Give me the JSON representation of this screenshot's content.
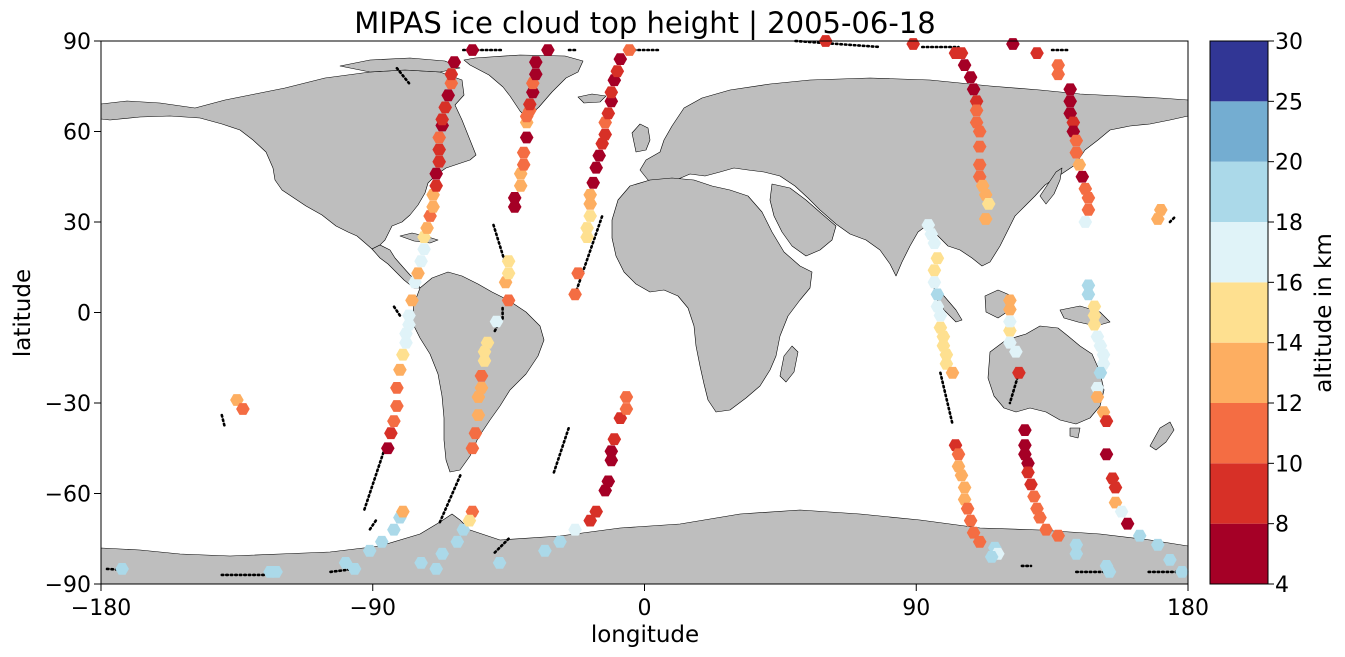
{
  "chart_data": {
    "type": "scatter",
    "title": "MIPAS ice cloud top height | 2005-06-18",
    "xlabel": "longitude",
    "ylabel": "latitude",
    "xlim": [
      -180,
      180
    ],
    "ylim": [
      -90,
      90
    ],
    "xticks": [
      -180,
      -90,
      0,
      90,
      180
    ],
    "xtick_labels": [
      "−180",
      "−90",
      "0",
      "90",
      "180"
    ],
    "yticks": [
      -90,
      -60,
      -30,
      0,
      30,
      60,
      90
    ],
    "ytick_labels": [
      "−90",
      "−60",
      "−30",
      "0",
      "30",
      "60",
      "90"
    ],
    "grid": false,
    "land_color": "#bebebe",
    "ocean_color": "#ffffff",
    "colorbar": {
      "label": "altitude in km",
      "bounds": [
        4,
        8,
        10,
        12,
        14,
        16,
        18,
        20,
        25,
        30
      ],
      "bound_labels": [
        "4",
        "8",
        "10",
        "12",
        "14",
        "16",
        "18",
        "20",
        "25",
        "30"
      ],
      "colors": [
        "#a50026",
        "#d73027",
        "#f46d43",
        "#fdae61",
        "#fee090",
        "#e0f3f8",
        "#abd9e9",
        "#74add1",
        "#313695"
      ]
    },
    "track_segments": [
      [
        [
          -178,
          -85
        ],
        [
          -175,
          -85.2
        ]
      ],
      [
        [
          -140,
          -34
        ],
        [
          -139,
          -38
        ]
      ],
      [
        [
          -140,
          -87
        ],
        [
          -124,
          -87
        ]
      ],
      [
        [
          -104,
          -86
        ],
        [
          -96,
          -85
        ]
      ],
      [
        [
          -89,
          -69
        ],
        [
          -91,
          -72
        ]
      ],
      [
        [
          -81,
          -1
        ],
        [
          -83,
          2
        ]
      ],
      [
        [
          -86,
          -45
        ],
        [
          -93,
          -66
        ]
      ],
      [
        [
          -61,
          -54
        ],
        [
          -68,
          -70
        ]
      ],
      [
        [
          -48,
          -3
        ],
        [
          -50,
          -7
        ]
      ],
      [
        [
          -50,
          29
        ],
        [
          -46,
          16
        ]
      ],
      [
        [
          -47,
          -2
        ],
        [
          -47,
          2
        ]
      ],
      [
        [
          -45,
          -75
        ],
        [
          -50,
          -80
        ]
      ],
      [
        [
          -30,
          -53
        ],
        [
          -25,
          -38
        ]
      ],
      [
        [
          -23,
          6
        ],
        [
          -14,
          32
        ]
      ],
      [
        [
          -82,
          81
        ],
        [
          -78,
          76
        ]
      ],
      [
        [
          -60,
          87
        ],
        [
          -47,
          87
        ]
      ],
      [
        [
          -25,
          87
        ],
        [
          -23,
          87
        ]
      ],
      [
        [
          -5,
          87
        ],
        [
          5,
          87
        ]
      ],
      [
        [
          50,
          90
        ],
        [
          78,
          88
        ]
      ],
      [
        [
          92,
          88
        ],
        [
          104,
          88
        ]
      ],
      [
        [
          135,
          87
        ],
        [
          140,
          87
        ]
      ],
      [
        [
          98,
          -20
        ],
        [
          102,
          -37
        ]
      ],
      [
        [
          124,
          -20
        ],
        [
          121,
          -30
        ]
      ],
      [
        [
          125,
          -84
        ],
        [
          128,
          -84
        ]
      ],
      [
        [
          143,
          -86
        ],
        [
          152,
          -86
        ]
      ],
      [
        [
          167,
          -86
        ],
        [
          176,
          -86
        ]
      ],
      [
        [
          174,
          30
        ],
        [
          176,
          32
        ]
      ]
    ],
    "points": [
      [
        -173,
        -85,
        19
      ],
      [
        -124,
        -86,
        19
      ],
      [
        -122,
        -86,
        19
      ],
      [
        -99,
        -83,
        19
      ],
      [
        -96,
        -85,
        19
      ],
      [
        -91,
        -79,
        19
      ],
      [
        -87,
        -76,
        19
      ],
      [
        -83,
        -72,
        19
      ],
      [
        -81,
        -68,
        19
      ],
      [
        -80,
        -66,
        13
      ],
      [
        -74,
        -83,
        19
      ],
      [
        -69,
        -85,
        19
      ],
      [
        -67,
        -80,
        19
      ],
      [
        -62,
        -76,
        19
      ],
      [
        -60,
        -72,
        19
      ],
      [
        -57,
        -66,
        11
      ],
      [
        -58,
        -69,
        15
      ],
      [
        -48,
        -83,
        19
      ],
      [
        -33,
        -79,
        19
      ],
      [
        -28,
        -76,
        19
      ],
      [
        -23,
        -72,
        17
      ],
      [
        -18,
        -69,
        9
      ],
      [
        -16,
        -66,
        9
      ],
      [
        -13,
        -59,
        7
      ],
      [
        -12,
        -56,
        7
      ],
      [
        -11,
        -49,
        7
      ],
      [
        -11,
        -46,
        7
      ],
      [
        -10,
        -42,
        9
      ],
      [
        -8,
        -35,
        9
      ],
      [
        -6,
        -32,
        11
      ],
      [
        -6,
        -28,
        11
      ],
      [
        -135,
        -29,
        13
      ],
      [
        -133,
        -32,
        11
      ],
      [
        -85,
        -45,
        7
      ],
      [
        -84,
        -40,
        9
      ],
      [
        -83,
        -36,
        11
      ],
      [
        -82,
        -31,
        11
      ],
      [
        -82,
        -25,
        11
      ],
      [
        -81,
        -19,
        13
      ],
      [
        -80,
        -14,
        15
      ],
      [
        -79,
        -10,
        17
      ],
      [
        -79,
        -7,
        17
      ],
      [
        -78,
        -4,
        17
      ],
      [
        -78,
        -1,
        17
      ],
      [
        -77,
        4,
        13
      ],
      [
        -76,
        10,
        17
      ],
      [
        -75,
        13,
        13
      ],
      [
        -74,
        17,
        17
      ],
      [
        -73,
        21,
        17
      ],
      [
        -73,
        25,
        15
      ],
      [
        -72,
        28,
        13
      ],
      [
        -71,
        32,
        11
      ],
      [
        -70,
        35,
        13
      ],
      [
        -70,
        39,
        13
      ],
      [
        -69,
        42,
        9
      ],
      [
        -69,
        46,
        7
      ],
      [
        -68,
        50,
        9
      ],
      [
        -68,
        54,
        9
      ],
      [
        -68,
        58,
        11
      ],
      [
        -67,
        62,
        7
      ],
      [
        -67,
        64,
        9
      ],
      [
        -66,
        68,
        9
      ],
      [
        -65,
        72,
        7
      ],
      [
        -64,
        76,
        11
      ],
      [
        -64,
        79,
        9
      ],
      [
        -63,
        83,
        7
      ],
      [
        -57,
        -45,
        11
      ],
      [
        -56,
        -40,
        11
      ],
      [
        -55,
        -34,
        13
      ],
      [
        -55,
        -28,
        13
      ],
      [
        -54,
        -25,
        13
      ],
      [
        -54,
        -21,
        11
      ],
      [
        -53,
        -16,
        15
      ],
      [
        -53,
        -13,
        15
      ],
      [
        -52,
        -10,
        15
      ],
      [
        -49,
        -3,
        17
      ],
      [
        -45,
        4,
        11
      ],
      [
        -46,
        10,
        13
      ],
      [
        -45,
        13,
        15
      ],
      [
        -45,
        17,
        15
      ],
      [
        -43,
        35,
        7
      ],
      [
        -43,
        38,
        7
      ],
      [
        -41,
        42,
        13
      ],
      [
        -41,
        46,
        13
      ],
      [
        -40,
        49,
        11
      ],
      [
        -40,
        53,
        11
      ],
      [
        -39,
        58,
        7
      ],
      [
        -39,
        63,
        13
      ],
      [
        -39,
        65,
        11
      ],
      [
        -38,
        67,
        11
      ],
      [
        -38,
        69,
        9
      ],
      [
        -37,
        73,
        7
      ],
      [
        -37,
        76,
        11
      ],
      [
        -36,
        79,
        7
      ],
      [
        -36,
        83,
        7
      ],
      [
        -57,
        87,
        7
      ],
      [
        -32,
        87,
        7
      ],
      [
        -23,
        6,
        11
      ],
      [
        -22,
        13,
        11
      ],
      [
        -19,
        25,
        15
      ],
      [
        -19,
        28,
        15
      ],
      [
        -18,
        32,
        15
      ],
      [
        -18,
        36,
        13
      ],
      [
        -18,
        39,
        13
      ],
      [
        -17,
        43,
        7
      ],
      [
        -16,
        48,
        7
      ],
      [
        -15,
        52,
        7
      ],
      [
        -14,
        56,
        9
      ],
      [
        -13,
        59,
        9
      ],
      [
        -13,
        63,
        11
      ],
      [
        -12,
        66,
        9
      ],
      [
        -11,
        70,
        7
      ],
      [
        -11,
        73,
        9
      ],
      [
        -10,
        77,
        7
      ],
      [
        -9,
        80,
        9
      ],
      [
        -8,
        84,
        7
      ],
      [
        -5,
        87,
        11
      ],
      [
        60,
        90,
        9
      ],
      [
        89,
        89,
        9
      ],
      [
        105,
        86,
        9
      ],
      [
        122,
        89,
        7
      ],
      [
        130,
        86,
        9
      ],
      [
        94,
        29,
        17
      ],
      [
        95,
        26,
        17
      ],
      [
        96,
        23,
        17
      ],
      [
        97,
        18,
        15
      ],
      [
        96,
        14,
        15
      ],
      [
        96,
        10,
        17
      ],
      [
        97,
        6,
        19
      ],
      [
        97,
        2,
        17
      ],
      [
        98,
        -1,
        17
      ],
      [
        98,
        -5,
        15
      ],
      [
        99,
        -8,
        15
      ],
      [
        99,
        -11,
        15
      ],
      [
        100,
        -14,
        15
      ],
      [
        100,
        -17,
        15
      ],
      [
        102,
        -20,
        13
      ],
      [
        103,
        -44,
        9
      ],
      [
        104,
        -47,
        11
      ],
      [
        104,
        -51,
        13
      ],
      [
        105,
        -54,
        13
      ],
      [
        106,
        -58,
        13
      ],
      [
        106,
        -62,
        13
      ],
      [
        107,
        -65,
        11
      ],
      [
        108,
        -69,
        11
      ],
      [
        109,
        -73,
        11
      ],
      [
        111,
        -76,
        11
      ],
      [
        116,
        -78,
        19
      ],
      [
        117,
        -80,
        17
      ],
      [
        103,
        86,
        9
      ],
      [
        106,
        82,
        7
      ],
      [
        108,
        78,
        7
      ],
      [
        109,
        74,
        7
      ],
      [
        110,
        70,
        9
      ],
      [
        110,
        67,
        11
      ],
      [
        110,
        63,
        11
      ],
      [
        111,
        60,
        11
      ],
      [
        111,
        55,
        11
      ],
      [
        111,
        49,
        11
      ],
      [
        111,
        45,
        11
      ],
      [
        112,
        42,
        13
      ],
      [
        113,
        39,
        13
      ],
      [
        114,
        36,
        15
      ],
      [
        113,
        31,
        13
      ],
      [
        115,
        -81,
        19
      ],
      [
        121,
        -6,
        15
      ],
      [
        121,
        -3,
        17
      ],
      [
        121,
        1,
        13
      ],
      [
        121,
        4,
        13
      ],
      [
        121,
        -10,
        17
      ],
      [
        123,
        -13,
        17
      ],
      [
        124,
        -20,
        9
      ],
      [
        126,
        -39,
        7
      ],
      [
        126,
        -44,
        7
      ],
      [
        126,
        -47,
        7
      ],
      [
        127,
        -50,
        7
      ],
      [
        127,
        -53,
        9
      ],
      [
        128,
        -57,
        9
      ],
      [
        129,
        -61,
        11
      ],
      [
        130,
        -65,
        11
      ],
      [
        131,
        -68,
        11
      ],
      [
        133,
        -72,
        11
      ],
      [
        137,
        -74,
        11
      ],
      [
        143,
        -80,
        19
      ],
      [
        143,
        -77,
        19
      ],
      [
        137,
        82,
        11
      ],
      [
        137,
        79,
        11
      ],
      [
        141,
        74,
        7
      ],
      [
        141,
        70,
        7
      ],
      [
        141,
        66,
        7
      ],
      [
        142,
        63,
        9
      ],
      [
        142,
        60,
        7
      ],
      [
        143,
        57,
        11
      ],
      [
        143,
        53,
        11
      ],
      [
        144,
        49,
        13
      ],
      [
        145,
        45,
        7
      ],
      [
        146,
        41,
        11
      ],
      [
        147,
        38,
        11
      ],
      [
        147,
        34,
        11
      ],
      [
        146,
        30,
        17
      ],
      [
        147,
        9,
        19
      ],
      [
        147,
        6,
        19
      ],
      [
        149,
        2,
        15
      ],
      [
        149,
        -1,
        15
      ],
      [
        149,
        -4,
        15
      ],
      [
        150,
        -8,
        17
      ],
      [
        151,
        -11,
        17
      ],
      [
        152,
        -14,
        17
      ],
      [
        152,
        -17,
        17
      ],
      [
        151,
        -20,
        19
      ],
      [
        150,
        -25,
        17
      ],
      [
        150,
        -28,
        13
      ],
      [
        152,
        -33,
        13
      ],
      [
        153,
        -36,
        9
      ],
      [
        153,
        -47,
        7
      ],
      [
        155,
        -55,
        9
      ],
      [
        156,
        -58,
        9
      ],
      [
        156,
        -63,
        13
      ],
      [
        158,
        -66,
        17
      ],
      [
        160,
        -70,
        7
      ],
      [
        164,
        -74,
        19
      ],
      [
        170,
        -77,
        19
      ],
      [
        174,
        -82,
        19
      ],
      [
        178,
        -86,
        19
      ],
      [
        153,
        -84,
        19
      ],
      [
        154,
        -86,
        19
      ],
      [
        170,
        31,
        13
      ],
      [
        171,
        34,
        13
      ]
    ]
  }
}
